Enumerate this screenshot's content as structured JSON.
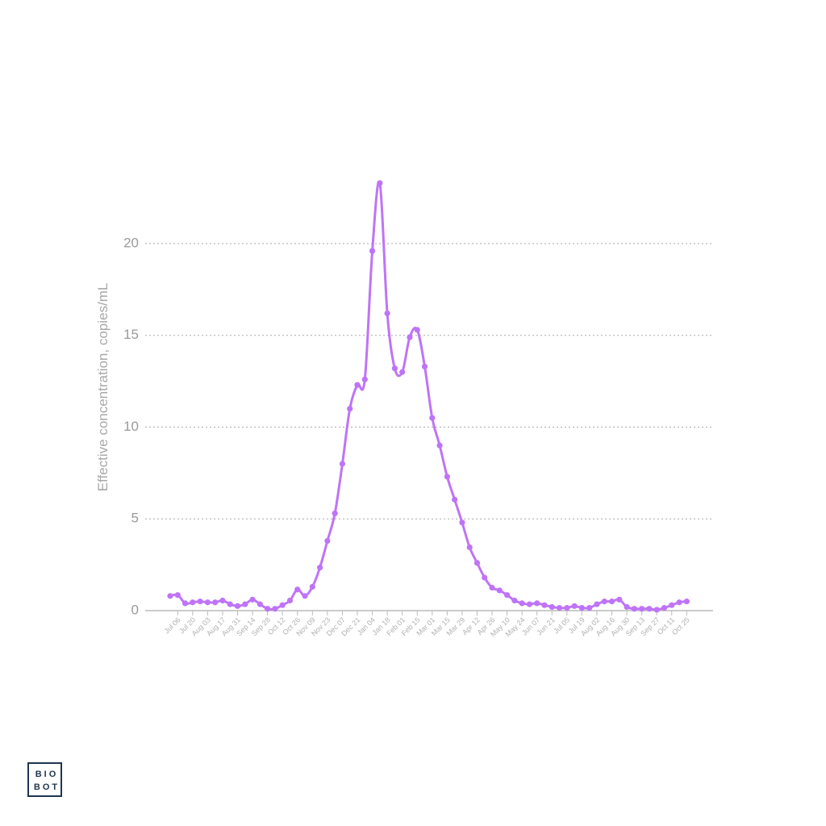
{
  "chart_data": {
    "type": "line",
    "y_label": "Effective concentration, copies/mL",
    "categories": [
      null,
      "Jul 06",
      null,
      "Jul 20",
      null,
      "Aug 03",
      null,
      "Aug 17",
      null,
      "Aug 31",
      null,
      "Sep 14",
      null,
      "Sep 28",
      null,
      "Oct 12",
      null,
      "Oct 26",
      null,
      "Nov 09",
      null,
      "Nov 23",
      null,
      "Dec 07",
      null,
      "Dec 21",
      null,
      "Jan 04",
      null,
      "Jan 18",
      null,
      "Feb 01",
      null,
      "Feb 15",
      null,
      "Mar 01",
      null,
      "Mar 15",
      null,
      "Mar 29",
      null,
      "Apr 12",
      null,
      "Apr 26",
      null,
      "May 10",
      null,
      "May 24",
      null,
      "Jun 07",
      null,
      "Jun 21",
      null,
      "Jul 05",
      null,
      "Jul 19",
      null,
      "Aug 02",
      null,
      "Aug 16",
      null,
      "Aug 30",
      null,
      "Sep 13",
      null,
      "Sep 27",
      null,
      "Oct 11",
      null,
      "Oct 25"
    ],
    "series": [
      {
        "name": "Effective concentration",
        "color": "#bf74f7",
        "values": [
          0.8,
          0.85,
          0.4,
          0.45,
          0.5,
          0.45,
          0.45,
          0.55,
          0.35,
          0.25,
          0.35,
          0.6,
          0.35,
          0.1,
          0.1,
          0.3,
          0.55,
          1.15,
          0.8,
          1.3,
          2.35,
          3.8,
          5.3,
          8.0,
          11.0,
          12.3,
          12.6,
          19.6,
          23.3,
          16.2,
          13.2,
          13.0,
          14.9,
          15.3,
          13.3,
          10.5,
          9.0,
          7.3,
          6.05,
          4.8,
          3.45,
          2.6,
          1.8,
          1.25,
          1.1,
          0.85,
          0.55,
          0.4,
          0.35,
          0.4,
          0.3,
          0.2,
          0.15,
          0.15,
          0.25,
          0.15,
          0.15,
          0.35,
          0.5,
          0.5,
          0.6,
          0.2,
          0.1,
          0.1,
          0.1,
          0.05,
          0.15,
          0.3,
          0.45,
          0.5
        ]
      }
    ],
    "ylim": [
      0,
      24
    ],
    "yticks": [
      0,
      5,
      10,
      15,
      20
    ],
    "grid": true
  },
  "logo": [
    "BIO",
    "BOT"
  ]
}
